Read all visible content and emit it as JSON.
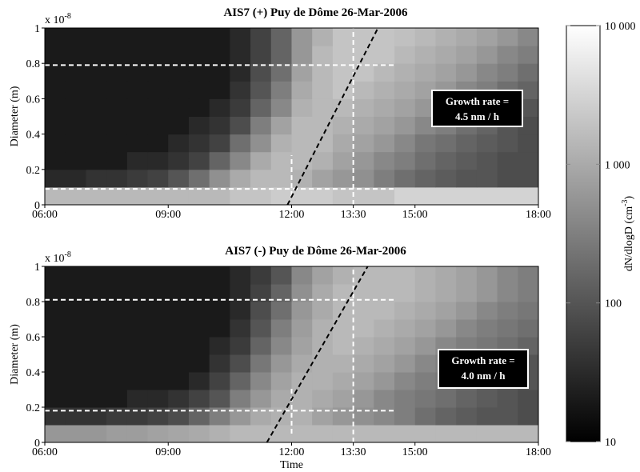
{
  "chart_data": [
    {
      "type": "heatmap",
      "title": "AIS7 (+) Puy de Dôme 26-Mar-2006",
      "ylabel": "Diameter (m)",
      "y_scale_label": "x 10",
      "y_scale_exponent": "-8",
      "xlim": [
        6,
        18
      ],
      "ylim": [
        0,
        1
      ],
      "xticks": [
        {
          "value": 6,
          "label": "06:00"
        },
        {
          "value": 9,
          "label": "09:00"
        },
        {
          "value": 12,
          "label": "12:00"
        },
        {
          "value": 13.5,
          "label": "13:30"
        },
        {
          "value": 15,
          "label": "15:00"
        },
        {
          "value": 18,
          "label": "18:00"
        }
      ],
      "yticks": [
        0,
        0.2,
        0.4,
        0.6,
        0.8,
        1
      ],
      "x_bins": [
        6,
        6.5,
        7,
        7.5,
        8,
        8.5,
        9,
        9.5,
        10,
        10.5,
        11,
        11.5,
        12,
        12.5,
        13,
        13.5,
        14,
        14.5,
        15,
        15.5,
        16,
        16.5,
        17,
        17.5,
        18
      ],
      "y_bins": [
        0,
        0.1,
        0.2,
        0.3,
        0.4,
        0.5,
        0.6,
        0.7,
        0.8,
        0.9,
        1
      ],
      "values": [
        [
          1500,
          1500,
          1500,
          1500,
          1500,
          1500,
          1500,
          1500,
          1500,
          2000,
          2000,
          2500,
          2500,
          2500,
          2000,
          2000,
          2000,
          3000,
          3000,
          3000,
          3000,
          3000,
          3000,
          3000
        ],
        [
          30,
          30,
          40,
          40,
          50,
          60,
          100,
          200,
          500,
          1000,
          1500,
          1500,
          1200,
          800,
          600,
          500,
          300,
          200,
          150,
          120,
          100,
          100,
          80,
          80
        ],
        [
          20,
          20,
          20,
          20,
          30,
          30,
          40,
          60,
          150,
          400,
          1000,
          1500,
          1500,
          1200,
          800,
          600,
          400,
          300,
          200,
          150,
          120,
          100,
          80,
          80
        ],
        [
          20,
          20,
          20,
          20,
          20,
          20,
          30,
          40,
          60,
          200,
          500,
          1200,
          1500,
          1500,
          1000,
          800,
          600,
          400,
          250,
          200,
          150,
          120,
          100,
          80
        ],
        [
          20,
          20,
          20,
          20,
          20,
          20,
          20,
          30,
          40,
          80,
          300,
          800,
          1500,
          1500,
          1200,
          1000,
          800,
          600,
          400,
          300,
          200,
          150,
          100,
          80
        ],
        [
          20,
          20,
          20,
          20,
          20,
          20,
          20,
          20,
          30,
          50,
          150,
          400,
          1200,
          1500,
          1500,
          1200,
          1000,
          800,
          600,
          400,
          300,
          200,
          150,
          100
        ],
        [
          20,
          20,
          20,
          20,
          20,
          20,
          20,
          20,
          20,
          40,
          100,
          300,
          1000,
          1500,
          2000,
          1500,
          1200,
          1000,
          800,
          600,
          400,
          300,
          200,
          150
        ],
        [
          20,
          20,
          20,
          20,
          20,
          20,
          20,
          20,
          20,
          30,
          80,
          200,
          800,
          1500,
          2000,
          2000,
          1500,
          1200,
          1000,
          800,
          600,
          400,
          300,
          200
        ],
        [
          20,
          20,
          20,
          20,
          20,
          20,
          20,
          20,
          20,
          30,
          60,
          150,
          600,
          1500,
          2000,
          2000,
          2000,
          1500,
          1200,
          1000,
          800,
          600,
          400,
          300
        ],
        [
          20,
          20,
          20,
          20,
          20,
          20,
          20,
          20,
          20,
          30,
          60,
          150,
          600,
          1200,
          2000,
          2000,
          2000,
          1800,
          1500,
          1200,
          1000,
          800,
          600,
          400
        ]
      ],
      "guides": [
        {
          "x": [
            6,
            14.5
          ],
          "y": [
            0.79,
            0.79
          ],
          "color": "#ffffff"
        },
        {
          "x": [
            6,
            14.5
          ],
          "y": [
            0.09,
            0.09
          ],
          "color": "#ffffff"
        },
        {
          "x": [
            12,
            12
          ],
          "y": [
            0.05,
            0.28
          ],
          "color": "#ffffff"
        },
        {
          "x": [
            13.5,
            13.5
          ],
          "y": [
            0,
            1
          ],
          "color": "#ffffff"
        },
        {
          "x": [
            11.9,
            14.1
          ],
          "y": [
            0,
            1
          ],
          "color": "#000000"
        }
      ],
      "annotation": [
        "Growth rate =",
        "4.5 nm / h"
      ]
    },
    {
      "type": "heatmap",
      "title": "AIS7 (-) Puy de Dôme 26-Mar-2006",
      "ylabel": "Diameter (m)",
      "xlabel": "Time",
      "y_scale_label": "x 10",
      "y_scale_exponent": "-8",
      "xlim": [
        6,
        18
      ],
      "ylim": [
        0,
        1
      ],
      "xticks": [
        {
          "value": 6,
          "label": "06:00"
        },
        {
          "value": 9,
          "label": "09:00"
        },
        {
          "value": 12,
          "label": "12:00"
        },
        {
          "value": 13.5,
          "label": "13:30"
        },
        {
          "value": 15,
          "label": "15:00"
        },
        {
          "value": 18,
          "label": "18:00"
        }
      ],
      "yticks": [
        0,
        0.2,
        0.4,
        0.6,
        0.8,
        1
      ],
      "x_bins": [
        6,
        6.5,
        7,
        7.5,
        8,
        8.5,
        9,
        9.5,
        10,
        10.5,
        11,
        11.5,
        12,
        12.5,
        13,
        13.5,
        14,
        14.5,
        15,
        15.5,
        16,
        16.5,
        17,
        17.5,
        18
      ],
      "y_bins": [
        0,
        0.1,
        0.2,
        0.3,
        0.4,
        0.5,
        0.6,
        0.7,
        0.8,
        0.9,
        1
      ],
      "values": [
        [
          600,
          600,
          600,
          700,
          700,
          800,
          900,
          1000,
          1200,
          1500,
          1500,
          1500,
          1500,
          1500,
          1500,
          1500,
          1500,
          1500,
          1500,
          1500,
          1500,
          1500,
          1500,
          1500
        ],
        [
          40,
          40,
          40,
          50,
          50,
          60,
          80,
          150,
          300,
          600,
          1000,
          1200,
          1200,
          800,
          600,
          500,
          400,
          300,
          200,
          150,
          120,
          100,
          100,
          80
        ],
        [
          20,
          20,
          20,
          20,
          30,
          30,
          40,
          60,
          100,
          300,
          600,
          1000,
          1200,
          1000,
          800,
          600,
          400,
          300,
          250,
          200,
          150,
          120,
          100,
          80
        ],
        [
          20,
          20,
          20,
          20,
          20,
          20,
          20,
          30,
          60,
          150,
          400,
          800,
          1200,
          1200,
          1000,
          800,
          600,
          400,
          300,
          250,
          200,
          150,
          120,
          100
        ],
        [
          20,
          20,
          20,
          20,
          20,
          20,
          20,
          20,
          40,
          80,
          250,
          600,
          1000,
          1200,
          1200,
          1000,
          800,
          600,
          400,
          300,
          250,
          200,
          150,
          100
        ],
        [
          20,
          20,
          20,
          20,
          20,
          20,
          20,
          20,
          30,
          50,
          150,
          400,
          800,
          1200,
          1500,
          1200,
          1000,
          800,
          600,
          400,
          300,
          250,
          200,
          150
        ],
        [
          20,
          20,
          20,
          20,
          20,
          20,
          20,
          20,
          20,
          40,
          100,
          300,
          700,
          1200,
          1500,
          1500,
          1200,
          1000,
          800,
          600,
          400,
          300,
          250,
          200
        ],
        [
          20,
          20,
          20,
          20,
          20,
          20,
          20,
          20,
          20,
          30,
          80,
          200,
          600,
          1000,
          1500,
          1500,
          1500,
          1200,
          1000,
          800,
          600,
          400,
          300,
          250
        ],
        [
          20,
          20,
          20,
          20,
          20,
          20,
          20,
          20,
          20,
          30,
          60,
          150,
          500,
          1000,
          1500,
          1500,
          1500,
          1500,
          1200,
          1000,
          800,
          600,
          400,
          300
        ],
        [
          20,
          20,
          20,
          20,
          20,
          20,
          20,
          20,
          20,
          30,
          50,
          100,
          400,
          800,
          1200,
          1500,
          1500,
          1500,
          1200,
          1000,
          800,
          600,
          400,
          300
        ]
      ],
      "guides": [
        {
          "x": [
            6,
            14.5
          ],
          "y": [
            0.81,
            0.81
          ],
          "color": "#ffffff"
        },
        {
          "x": [
            6,
            14.5
          ],
          "y": [
            0.18,
            0.18
          ],
          "color": "#ffffff"
        },
        {
          "x": [
            12,
            12
          ],
          "y": [
            0.05,
            0.32
          ],
          "color": "#ffffff"
        },
        {
          "x": [
            13.5,
            13.5
          ],
          "y": [
            0,
            1
          ],
          "color": "#ffffff"
        },
        {
          "x": [
            11.4,
            13.85
          ],
          "y": [
            0,
            1
          ],
          "color": "#000000"
        }
      ],
      "annotation": [
        "Growth rate =",
        "4.0 nm / h"
      ]
    }
  ],
  "colorbar": {
    "log": true,
    "clim": [
      10,
      10000
    ],
    "label": "dN/dlogD (cm",
    "label_exponent": "-3",
    "label_end": ")",
    "ticks": [
      10,
      100,
      {
        "value": 1000,
        "label": "1 000"
      },
      {
        "value": 10000,
        "label": "10 000"
      }
    ]
  }
}
